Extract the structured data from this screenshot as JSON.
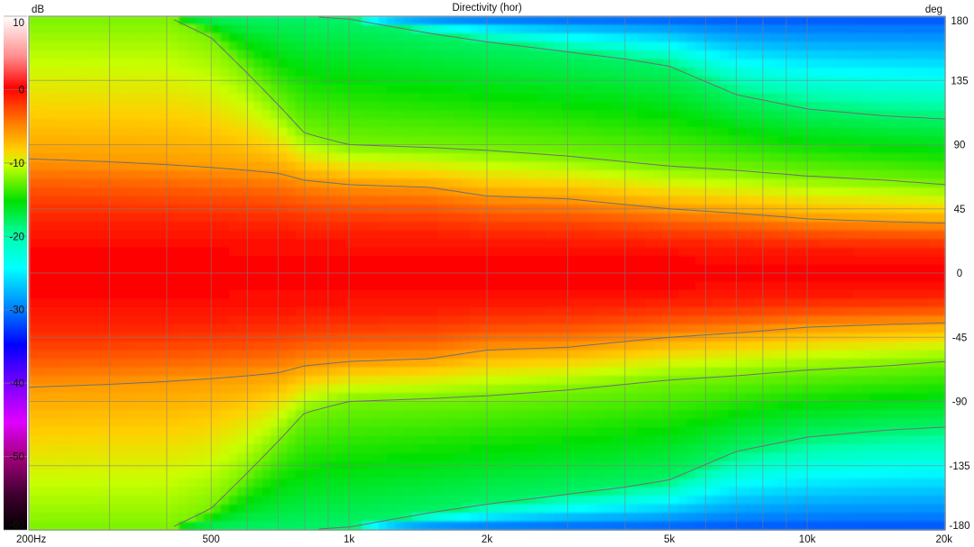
{
  "chart_data": {
    "type": "heatmap",
    "title": "Directivity (hor)",
    "colorbar": {
      "unit": "dB",
      "range": [
        -60,
        10
      ],
      "tick_labels": [
        "10",
        "0",
        "-10",
        "-20",
        "-30",
        "-40",
        "-50",
        "-60"
      ],
      "tick_values": [
        10,
        0,
        -10,
        -20,
        -30,
        -40,
        -50,
        -60
      ]
    },
    "x_axis": {
      "scale": "log",
      "range": [
        200,
        20000
      ],
      "tick_labels": [
        "200Hz",
        "500",
        "1k",
        "2k",
        "5k",
        "10k",
        "20k"
      ],
      "tick_values": [
        200,
        500,
        1000,
        2000,
        5000,
        10000,
        20000
      ],
      "grid_values": [
        300,
        400,
        600,
        700,
        800,
        900,
        3000,
        4000,
        6000,
        7000,
        8000,
        9000
      ]
    },
    "y_axis": {
      "unit": "deg",
      "range": [
        -180,
        180
      ],
      "tick_labels": [
        "180",
        "135",
        "90",
        "45",
        "0",
        "-45",
        "-90",
        "-135",
        "-180"
      ],
      "tick_values": [
        180,
        135,
        90,
        45,
        0,
        -45,
        -90,
        -135,
        -180
      ]
    },
    "contour_levels_db": [
      -6,
      -12,
      -18
    ],
    "beamwidth_deg_by_freq": {
      "freq": [
        200,
        300,
        400,
        500,
        600,
        700,
        800,
        1000,
        1500,
        2000,
        3000,
        4000,
        5000,
        7000,
        10000,
        15000,
        20000
      ],
      "minus6db": [
        80,
        78,
        76,
        74,
        72,
        70,
        65,
        62,
        60,
        54,
        52,
        48,
        45,
        42,
        38,
        36,
        35
      ],
      "minus12db": [
        180,
        180,
        180,
        165,
        140,
        118,
        98,
        90,
        88,
        86,
        82,
        78,
        75,
        72,
        68,
        65,
        62
      ],
      "minus18db": [
        180,
        180,
        180,
        180,
        180,
        180,
        180,
        178,
        168,
        162,
        155,
        150,
        145,
        125,
        115,
        110,
        108
      ]
    },
    "grid": true
  }
}
